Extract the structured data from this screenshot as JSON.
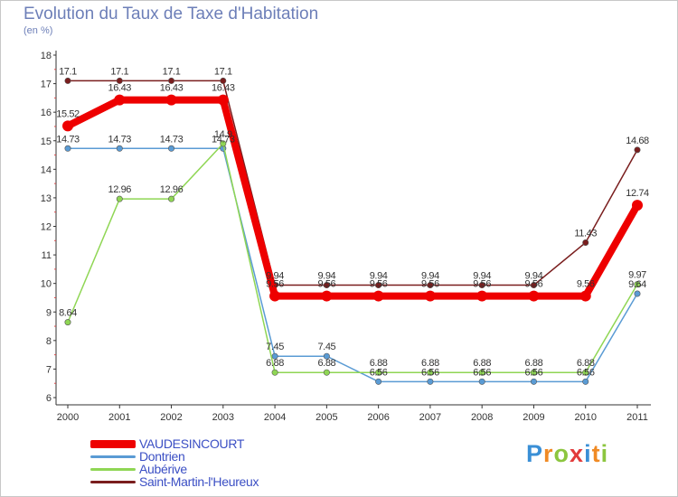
{
  "header": {
    "title": "Evolution du Taux de Taxe d'Habitation",
    "unit": "(en %)"
  },
  "logo": {
    "letters": [
      "P",
      "r",
      "o",
      "x",
      "i",
      "t",
      "i"
    ],
    "colors": [
      "#3a8fd6",
      "#f08a24",
      "#8cc63f",
      "#e23b3b",
      "#3a8fd6",
      "#f08a24",
      "#8cc63f"
    ]
  },
  "chart_data": {
    "type": "line",
    "title": "Evolution du Taux de Taxe d'Habitation",
    "ylabel": "(en %)",
    "xlabel": "",
    "categories": [
      "2000",
      "2001",
      "2002",
      "2003",
      "2004",
      "2005",
      "2006",
      "2007",
      "2008",
      "2009",
      "2010",
      "2011"
    ],
    "ylim": [
      6,
      18
    ],
    "yticks": [
      "6",
      "7",
      "8",
      "9",
      "10",
      "11",
      "12",
      "13",
      "14",
      "15",
      "16",
      "17",
      "18"
    ],
    "legend_position": "bottom-left",
    "series": [
      {
        "name": "Saint-Martin-l'Heureux",
        "color": "#7a1e1e",
        "values": [
          17.1,
          17.1,
          17.1,
          17.1,
          9.94,
          9.94,
          9.94,
          9.94,
          9.94,
          9.94,
          11.43,
          14.68
        ],
        "labels": [
          "17.1",
          "17.1",
          "17.1",
          "17.1",
          "9.94",
          "9.94",
          "9.94",
          "9.94",
          "9.94",
          "9.94",
          "11.43",
          "14.68"
        ]
      },
      {
        "name": "Dontrien",
        "color": "#5a9bd4",
        "values": [
          14.73,
          14.73,
          14.73,
          14.73,
          7.45,
          7.45,
          6.56,
          6.56,
          6.56,
          6.56,
          6.56,
          9.64
        ],
        "labels": [
          "14.73",
          "14.73",
          "14.73",
          "14.73",
          "7.45",
          "7.45",
          "6.56",
          "6.56",
          "6.56",
          "6.56",
          "6.56",
          "9.64"
        ]
      },
      {
        "name": "Aubérive",
        "color": "#8fd654",
        "values": [
          8.64,
          12.96,
          12.96,
          14.9,
          6.88,
          6.88,
          6.88,
          6.88,
          6.88,
          6.88,
          6.88,
          9.97
        ],
        "labels": [
          "8.64",
          "12.96",
          "12.96",
          "14.9",
          "6.88",
          "6.88",
          "6.88",
          "6.88",
          "6.88",
          "6.88",
          "6.88",
          "9.97"
        ]
      },
      {
        "name": "VAUDESINCOURT",
        "color": "#ee0000",
        "values": [
          15.52,
          16.43,
          16.43,
          16.43,
          9.56,
          9.56,
          9.56,
          9.56,
          9.56,
          9.56,
          9.56,
          12.74
        ],
        "labels": [
          "15.52",
          "16.43",
          "16.43",
          "16.43",
          "9.56",
          "9.56",
          "9.56",
          "9.56",
          "9.56",
          "9.56",
          "9.56",
          "12.74"
        ]
      }
    ],
    "legend": [
      {
        "name": "VAUDESINCOURT",
        "color": "#ee0000"
      },
      {
        "name": "Dontrien",
        "color": "#5a9bd4"
      },
      {
        "name": "Aubérive",
        "color": "#8fd654"
      },
      {
        "name": "Saint-Martin-l'Heureux",
        "color": "#7a1e1e"
      }
    ]
  }
}
